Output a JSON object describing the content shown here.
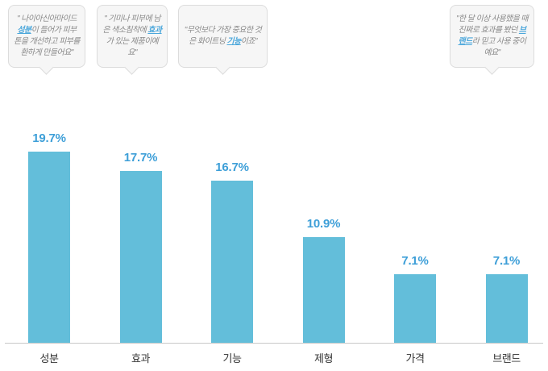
{
  "chart_data": {
    "type": "bar",
    "title": "",
    "xlabel": "",
    "ylabel": "",
    "categories": [
      "성분",
      "효과",
      "기능",
      "제형",
      "가격",
      "브랜드"
    ],
    "values": [
      19.7,
      17.7,
      16.7,
      10.9,
      7.1,
      7.1
    ],
    "value_labels": [
      "19.7%",
      "17.7%",
      "16.7%",
      "10.9%",
      "7.1%",
      "7.1%"
    ],
    "ylim": [
      0,
      21
    ],
    "grid": false,
    "legend": false,
    "bar_color": "#63BEDA",
    "value_label_color": "#3E9FD8",
    "category_label_color": "#333333",
    "axis_line_color": "#C8C8C8"
  },
  "callouts": [
    {
      "annotates": "성분",
      "segments": [
        {
          "text": "\" 나이아신아마이드 "
        },
        {
          "text": "성분",
          "highlight": true
        },
        {
          "text": "이 들어가 피부 톤을 개선하고 피부를 환하게 만들어요\""
        }
      ]
    },
    {
      "annotates": "효과",
      "segments": [
        {
          "text": "\" 기미나 피부에 남은 색소침착에 "
        },
        {
          "text": "효과",
          "highlight": true
        },
        {
          "text": "가 있는 제품이예요\""
        }
      ]
    },
    {
      "annotates": "기능",
      "segments": [
        {
          "text": "\"무엇보다 가장 중요한 것은 화이트닝 "
        },
        {
          "text": "기능",
          "highlight": true
        },
        {
          "text": "이죠\""
        }
      ]
    },
    {
      "annotates": "브랜드",
      "segments": [
        {
          "text": "\"한 달 이상 사용했을 때 진짜로 효과를 봤던 "
        },
        {
          "text": "브랜드",
          "highlight": true
        },
        {
          "text": "라 믿고 사용 중이예요\""
        }
      ]
    }
  ],
  "colors": {
    "callout_background": "#F6F6F6",
    "callout_border": "#DCDCDC",
    "callout_text": "#8A8A8A",
    "callout_highlight": "#4BA7DB",
    "background": "#FFFFFF"
  }
}
